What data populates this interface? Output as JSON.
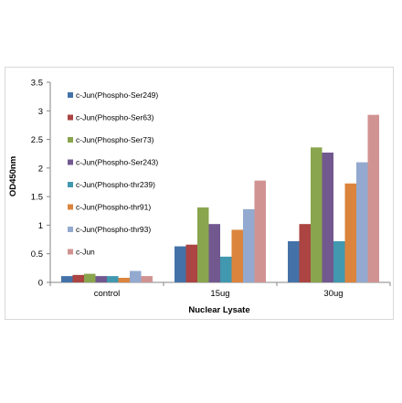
{
  "chart_data": {
    "type": "bar",
    "xlabel": "Nuclear Lysate",
    "ylabel": "OD450nm",
    "ylim": [
      0,
      3.5
    ],
    "yticks": [
      "0",
      "0.5",
      "1",
      "1.5",
      "2",
      "2.5",
      "3",
      "3.5"
    ],
    "categories": [
      "control",
      "15ug",
      "30ug"
    ],
    "legend_position": "upper-left inside plot",
    "grid": false,
    "series": [
      {
        "name": "c-Jun(Phospho-Ser249)",
        "color": "#4472a8",
        "values": [
          0.11,
          0.63,
          0.72
        ]
      },
      {
        "name": "c-Jun(Phospho-Ser63)",
        "color": "#ab4442",
        "values": [
          0.13,
          0.66,
          1.02
        ]
      },
      {
        "name": "c-Jun(Phospho-Ser73)",
        "color": "#89a54e",
        "values": [
          0.15,
          1.31,
          2.36
        ]
      },
      {
        "name": "c-Jun(Phospho-Ser243)",
        "color": "#71588f",
        "values": [
          0.11,
          1.02,
          2.27
        ]
      },
      {
        "name": "c-Jun(Phospho-thr239)",
        "color": "#4198af",
        "values": [
          0.11,
          0.45,
          0.72
        ]
      },
      {
        "name": "c-Jun(Phospho-thr91)",
        "color": "#db843d",
        "values": [
          0.08,
          0.92,
          1.73
        ]
      },
      {
        "name": "c-Jun(Phospho-thr93)",
        "color": "#93a9cf",
        "values": [
          0.2,
          1.28,
          2.1
        ]
      },
      {
        "name": "c-Jun",
        "color": "#d19392",
        "values": [
          0.11,
          1.78,
          2.93
        ]
      }
    ]
  }
}
